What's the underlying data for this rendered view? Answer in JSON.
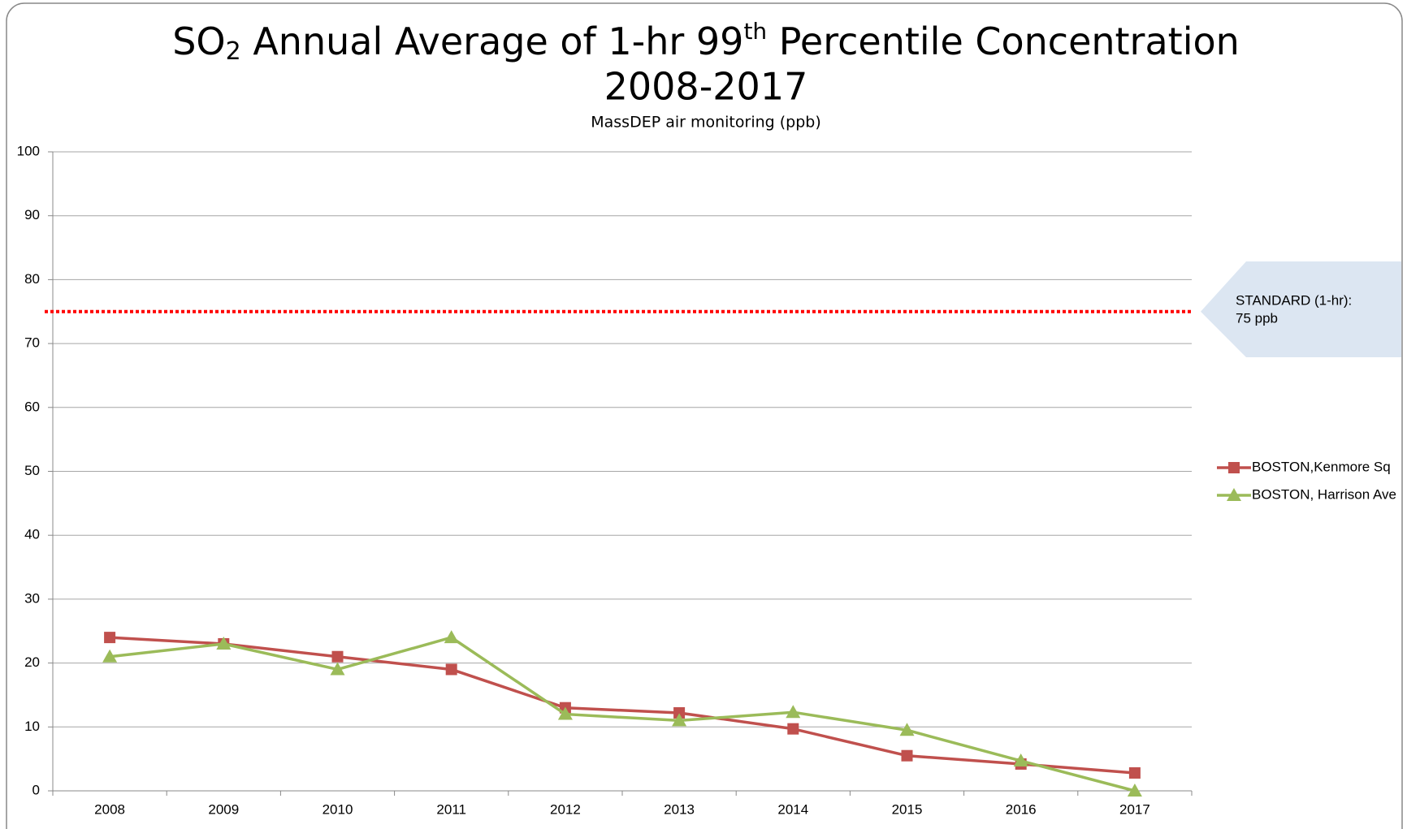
{
  "chart_data": {
    "type": "line",
    "title": {
      "prefix": "SO",
      "subscript": "2",
      "middle": " Annual Average of 1-hr 99",
      "superscript": "th",
      "suffix": " Percentile Concentration",
      "line2": "2008-2017"
    },
    "subtitle": "MassDEP air monitoring (ppb)",
    "categories": [
      "2008",
      "2009",
      "2010",
      "2011",
      "2012",
      "2013",
      "2014",
      "2015",
      "2016",
      "2017"
    ],
    "series": [
      {
        "name": "BOSTON,Kenmore Sq",
        "color": "#c0504d",
        "marker": "square",
        "values": [
          24,
          23,
          21,
          19,
          13,
          12.2,
          9.7,
          5.5,
          4.2,
          2.8
        ]
      },
      {
        "name": "BOSTON, Harrison Ave",
        "color": "#9bbb59",
        "marker": "triangle",
        "values": [
          21,
          23,
          19,
          24,
          12,
          11,
          12.3,
          9.5,
          4.7,
          0
        ]
      }
    ],
    "ylim": [
      0,
      100
    ],
    "yticks": [
      0,
      10,
      20,
      30,
      40,
      50,
      60,
      70,
      80,
      90,
      100
    ],
    "grid": true,
    "legend": "right",
    "reference_line": {
      "value": 75,
      "color": "#ff0000",
      "annotation": [
        "STANDARD (1-hr):",
        "75 ppb"
      ],
      "annotation_color": "#dce6f2"
    }
  }
}
